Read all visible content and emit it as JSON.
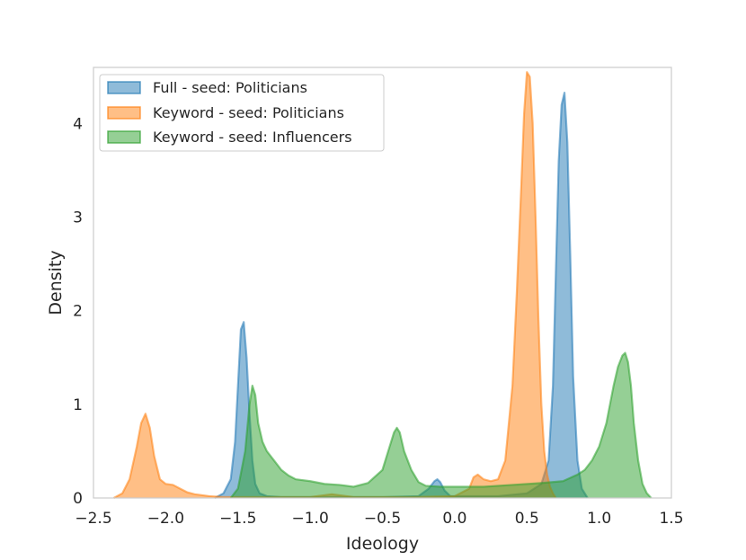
{
  "chart_data": {
    "type": "area",
    "xlabel": "Ideology",
    "ylabel": "Density",
    "xlim": [
      -2.5,
      1.5
    ],
    "ylim": [
      0,
      4.6
    ],
    "xticks": [
      -2.5,
      -2.0,
      -1.5,
      -1.0,
      -0.5,
      0.0,
      0.5,
      1.0,
      1.5
    ],
    "xtick_labels": [
      "−2.5",
      "−2.0",
      "−1.5",
      "−1.0",
      "−0.5",
      "0.0",
      "0.5",
      "1.0",
      "1.5"
    ],
    "yticks": [
      0,
      1,
      2,
      3,
      4
    ],
    "ytick_labels": [
      "0",
      "1",
      "2",
      "3",
      "4"
    ],
    "grid": false,
    "legend_position": "upper-left",
    "series": [
      {
        "name": "Full - seed: Politicians",
        "color": "#1f77b4",
        "x": [
          -1.66,
          -1.6,
          -1.55,
          -1.52,
          -1.5,
          -1.48,
          -1.46,
          -1.44,
          -1.42,
          -1.4,
          -1.38,
          -1.35,
          -1.3,
          -1.2,
          -1.0,
          -0.5,
          -0.25,
          -0.18,
          -0.14,
          -0.12,
          -0.1,
          -0.07,
          -0.03,
          0.0,
          0.3,
          0.5,
          0.6,
          0.65,
          0.68,
          0.7,
          0.72,
          0.74,
          0.76,
          0.78,
          0.8,
          0.82,
          0.85,
          0.88,
          0.92
        ],
        "y": [
          0.0,
          0.05,
          0.2,
          0.6,
          1.2,
          1.8,
          1.88,
          1.5,
          0.9,
          0.4,
          0.15,
          0.05,
          0.02,
          0.01,
          0.01,
          0.01,
          0.02,
          0.1,
          0.18,
          0.2,
          0.17,
          0.08,
          0.02,
          0.02,
          0.02,
          0.05,
          0.15,
          0.4,
          1.2,
          2.4,
          3.6,
          4.2,
          4.33,
          3.8,
          2.6,
          1.3,
          0.4,
          0.1,
          0.0
        ]
      },
      {
        "name": "Keyword - seed: Politicians",
        "color": "#ff7f0e",
        "x": [
          -2.36,
          -2.3,
          -2.25,
          -2.2,
          -2.17,
          -2.14,
          -2.11,
          -2.08,
          -2.04,
          -2.0,
          -1.95,
          -1.9,
          -1.85,
          -1.8,
          -1.7,
          -1.6,
          -1.5,
          -1.0,
          -0.85,
          -0.7,
          -0.3,
          0.0,
          0.1,
          0.13,
          0.16,
          0.2,
          0.25,
          0.3,
          0.35,
          0.4,
          0.43,
          0.46,
          0.48,
          0.5,
          0.52,
          0.54,
          0.56,
          0.58,
          0.6,
          0.62,
          0.64,
          0.66,
          0.68,
          0.7
        ],
        "y": [
          0.0,
          0.05,
          0.2,
          0.55,
          0.8,
          0.9,
          0.75,
          0.45,
          0.2,
          0.15,
          0.14,
          0.1,
          0.06,
          0.04,
          0.02,
          0.01,
          0.01,
          0.01,
          0.04,
          0.01,
          0.01,
          0.02,
          0.1,
          0.22,
          0.25,
          0.2,
          0.18,
          0.2,
          0.4,
          1.2,
          2.2,
          3.3,
          4.1,
          4.55,
          4.5,
          4.0,
          3.0,
          1.9,
          1.0,
          0.5,
          0.25,
          0.12,
          0.05,
          0.0
        ]
      },
      {
        "name": "Keyword - seed: Influencers",
        "color": "#2ca02c",
        "x": [
          -1.55,
          -1.5,
          -1.45,
          -1.42,
          -1.4,
          -1.38,
          -1.36,
          -1.33,
          -1.3,
          -1.25,
          -1.2,
          -1.15,
          -1.1,
          -1.0,
          -0.9,
          -0.8,
          -0.7,
          -0.6,
          -0.5,
          -0.45,
          -0.42,
          -0.4,
          -0.38,
          -0.35,
          -0.3,
          -0.25,
          -0.2,
          -0.1,
          0.0,
          0.2,
          0.4,
          0.6,
          0.75,
          0.85,
          0.9,
          0.95,
          1.0,
          1.05,
          1.1,
          1.13,
          1.16,
          1.18,
          1.2,
          1.22,
          1.24,
          1.27,
          1.3,
          1.33,
          1.36
        ],
        "y": [
          0.0,
          0.1,
          0.5,
          1.0,
          1.2,
          1.1,
          0.8,
          0.6,
          0.5,
          0.4,
          0.3,
          0.24,
          0.2,
          0.18,
          0.15,
          0.14,
          0.12,
          0.16,
          0.3,
          0.55,
          0.7,
          0.75,
          0.7,
          0.5,
          0.3,
          0.17,
          0.13,
          0.12,
          0.12,
          0.12,
          0.14,
          0.16,
          0.18,
          0.25,
          0.3,
          0.4,
          0.55,
          0.8,
          1.2,
          1.4,
          1.52,
          1.55,
          1.45,
          1.2,
          0.8,
          0.4,
          0.15,
          0.05,
          0.0
        ]
      }
    ]
  }
}
